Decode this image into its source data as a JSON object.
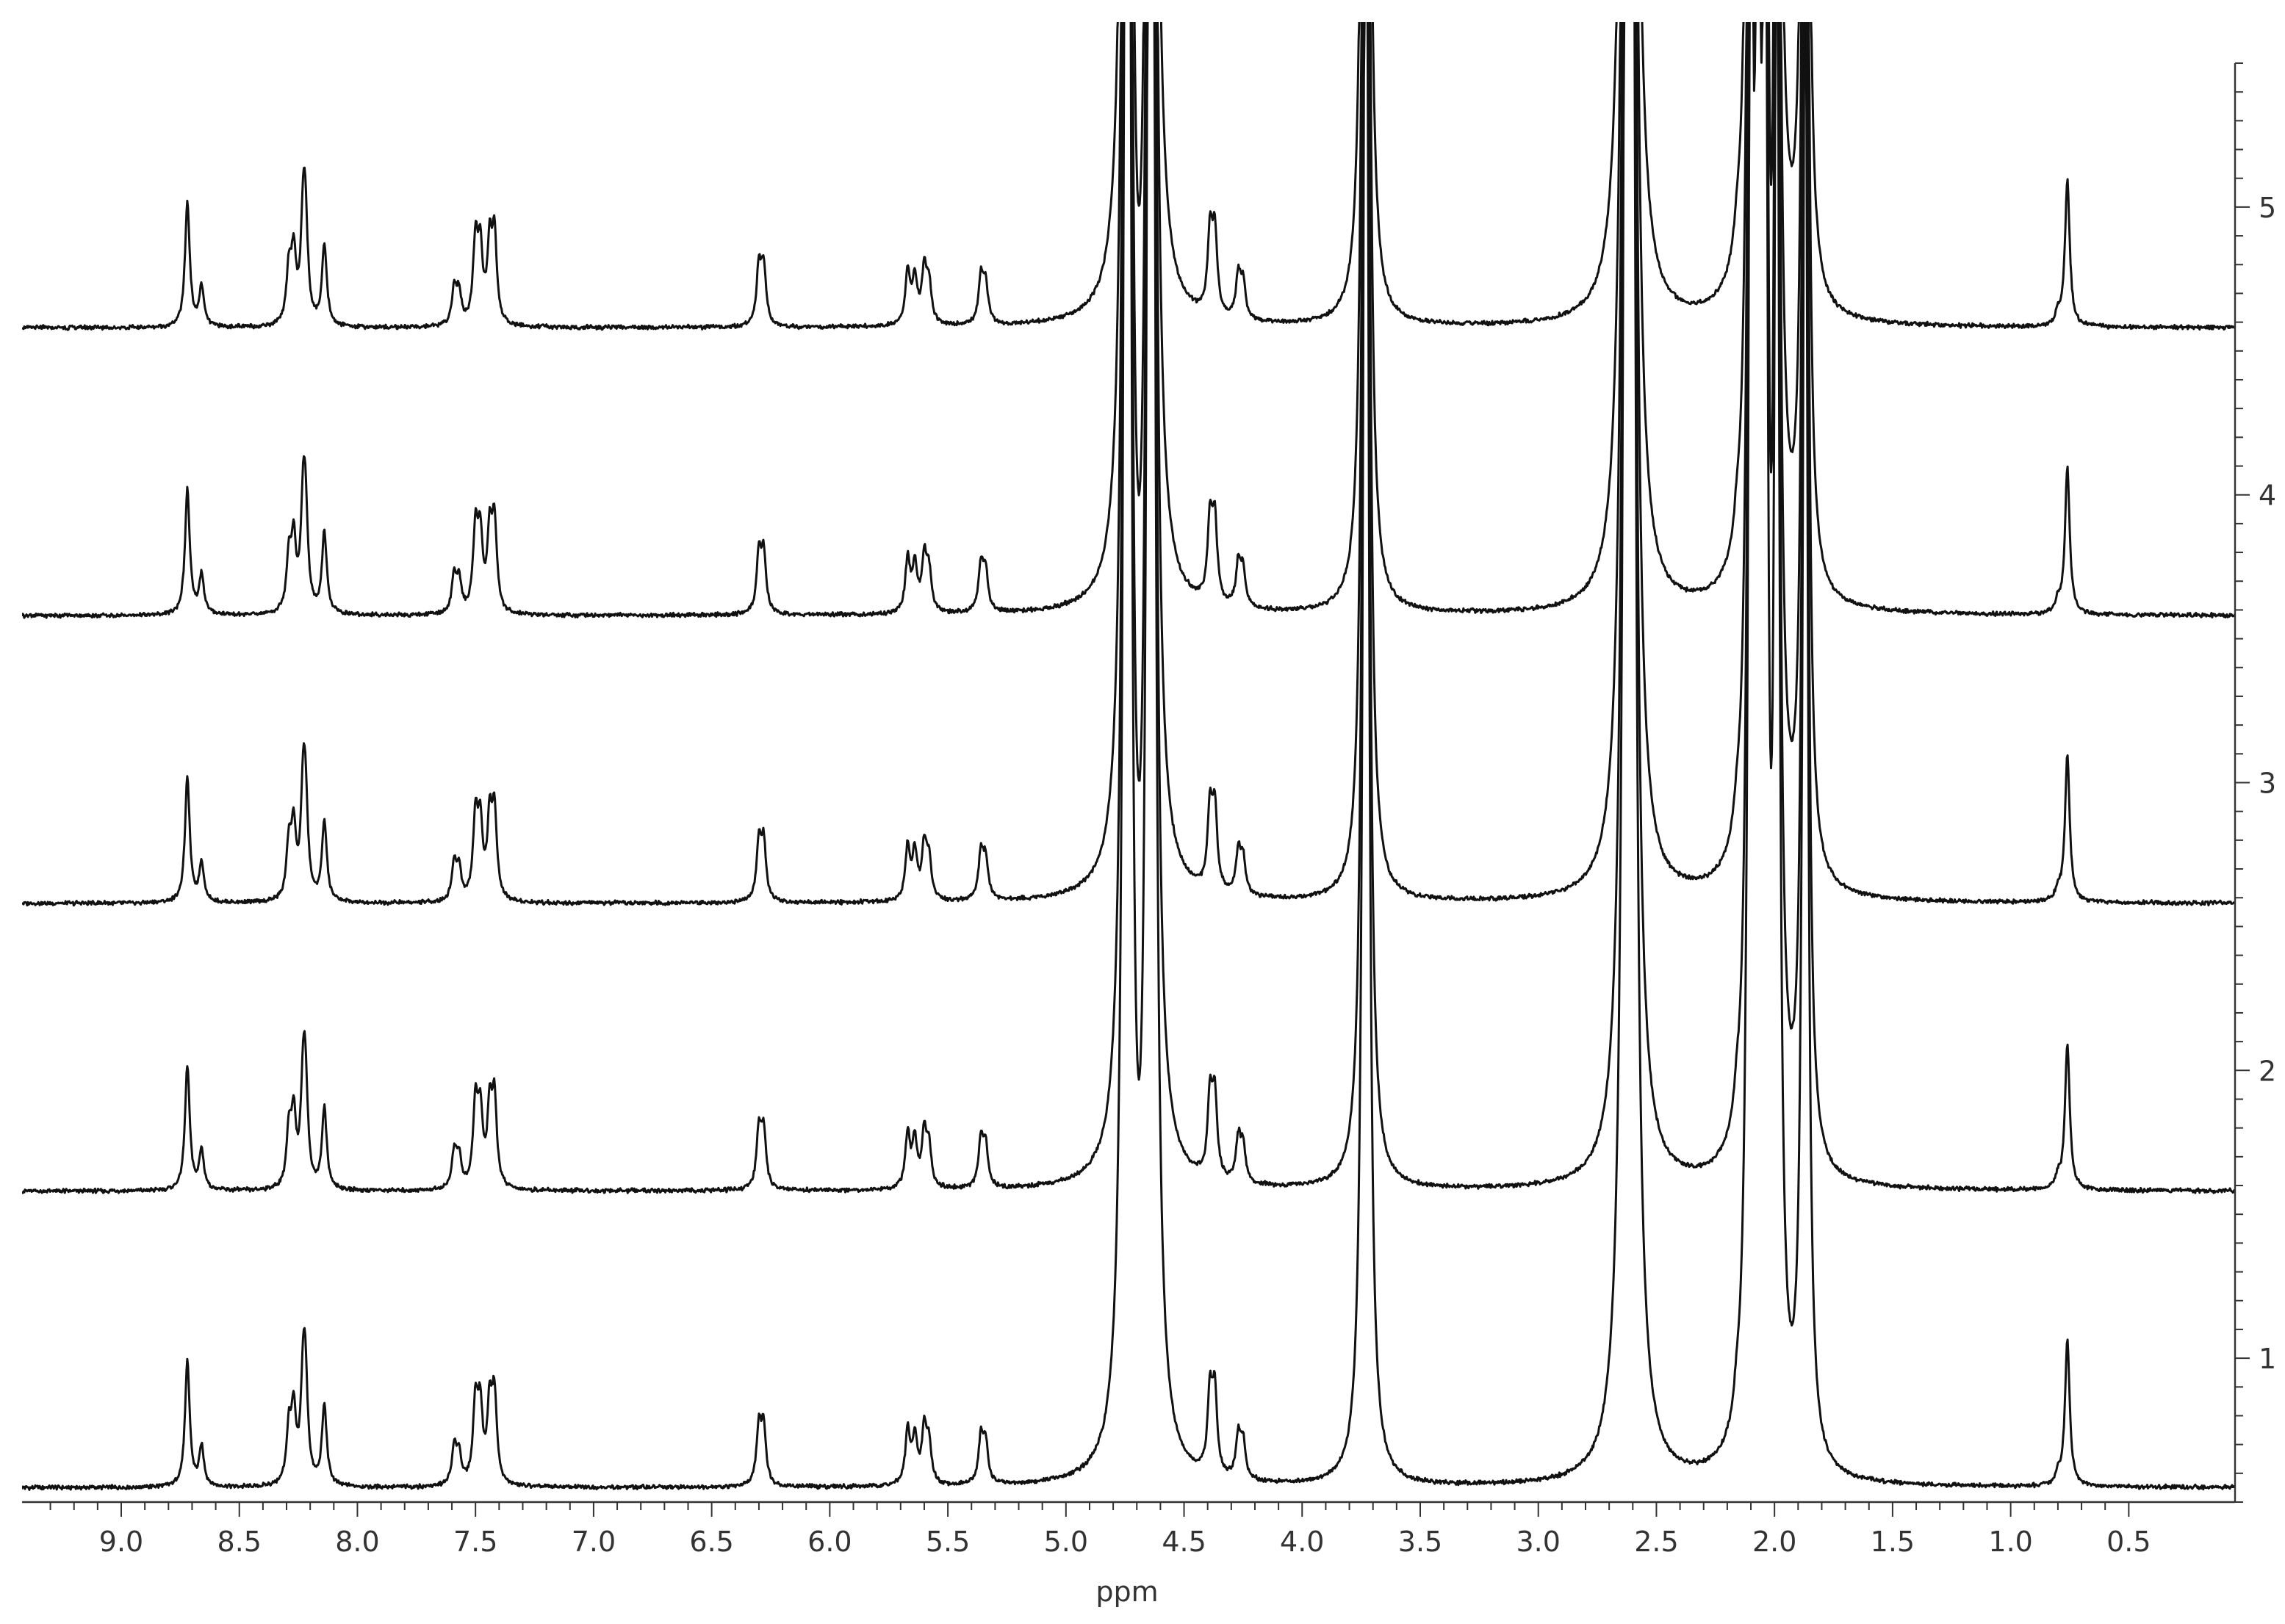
{
  "chart_data": {
    "type": "line",
    "xlabel": "ppm",
    "ylabel": "",
    "xlim": [
      9.42,
      0.05
    ],
    "x_ticks": [
      9.0,
      8.5,
      8.0,
      7.5,
      7.0,
      6.5,
      6.0,
      5.5,
      5.0,
      4.5,
      4.0,
      3.5,
      3.0,
      2.5,
      2.0,
      1.5,
      1.0,
      0.5
    ],
    "x_tick_labels": [
      "9.0",
      "8.5",
      "8.0",
      "7.5",
      "7.0",
      "6.5",
      "6.0",
      "5.5",
      "5.0",
      "4.5",
      "4.0",
      "3.5",
      "3.0",
      "2.5",
      "2.0",
      "1.5",
      "1.0",
      "0.5"
    ],
    "ylim": [
      0.5,
      5.5
    ],
    "y_ticks": [
      1,
      2,
      3,
      4,
      5
    ],
    "y_tick_labels": [
      "1",
      "2",
      "3",
      "4",
      "5"
    ],
    "grid": false,
    "legend": "none",
    "line_color": "#111111",
    "series": [
      {
        "trace": 1,
        "baseline": 0.55
      },
      {
        "trace": 2,
        "baseline": 1.58
      },
      {
        "trace": 3,
        "baseline": 2.58
      },
      {
        "trace": 4,
        "baseline": 3.58
      },
      {
        "trace": 5,
        "baseline": 4.58
      }
    ],
    "peaks": [
      {
        "ppm": 8.72,
        "height": 0.7
      },
      {
        "ppm": 8.66,
        "height": 0.22
      },
      {
        "ppm": 8.29,
        "height": 0.3
      },
      {
        "ppm": 8.27,
        "height": 0.38
      },
      {
        "ppm": 8.23,
        "height": 0.5
      },
      {
        "ppm": 8.22,
        "height": 0.5
      },
      {
        "ppm": 8.14,
        "height": 0.45
      },
      {
        "ppm": 7.59,
        "height": 0.2
      },
      {
        "ppm": 7.57,
        "height": 0.17
      },
      {
        "ppm": 7.5,
        "height": 0.45
      },
      {
        "ppm": 7.48,
        "height": 0.4
      },
      {
        "ppm": 7.44,
        "height": 0.42
      },
      {
        "ppm": 7.42,
        "height": 0.48
      },
      {
        "ppm": 6.3,
        "height": 0.32
      },
      {
        "ppm": 6.28,
        "height": 0.32
      },
      {
        "ppm": 5.67,
        "height": 0.3
      },
      {
        "ppm": 5.64,
        "height": 0.26
      },
      {
        "ppm": 5.6,
        "height": 0.3
      },
      {
        "ppm": 5.58,
        "height": 0.22
      },
      {
        "ppm": 5.36,
        "height": 0.26
      },
      {
        "ppm": 5.34,
        "height": 0.22
      },
      {
        "ppm": 4.74,
        "height": 20.0
      },
      {
        "ppm": 4.64,
        "height": 22.0
      },
      {
        "ppm": 4.39,
        "height": 0.44
      },
      {
        "ppm": 4.37,
        "height": 0.45
      },
      {
        "ppm": 4.27,
        "height": 0.24
      },
      {
        "ppm": 4.25,
        "height": 0.2
      },
      {
        "ppm": 3.73,
        "height": 12.0
      },
      {
        "ppm": 2.62,
        "height": 18.0
      },
      {
        "ppm": 2.61,
        "height": 18.0
      },
      {
        "ppm": 2.16,
        "height": 0.1
      },
      {
        "ppm": 2.1,
        "height": 9.0
      },
      {
        "ppm": 2.07,
        "height": 9.0
      },
      {
        "ppm": 2.04,
        "height": 9.0
      },
      {
        "ppm": 1.99,
        "height": 9.0
      },
      {
        "ppm": 1.87,
        "height": 9.0
      },
      {
        "ppm": 0.8,
        "height": 0.06
      },
      {
        "ppm": 0.76,
        "height": 0.82
      }
    ]
  }
}
